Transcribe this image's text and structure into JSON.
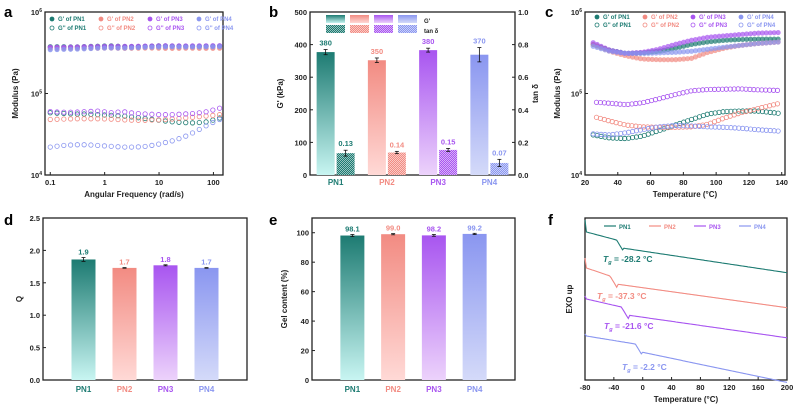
{
  "colors": {
    "PN1": "#1d7b72",
    "PN2": "#f28b82",
    "PN3": "#a855f0",
    "PN4": "#8a96f0",
    "PN1_light": "#c8f5f2",
    "PN2_light": "#ffd9d6",
    "PN3_light": "#ecd2fb",
    "PN4_light": "#d4daf9"
  },
  "chart_data": [
    {
      "panel": "a",
      "type": "scatter",
      "title": "",
      "xlabel": "Angular Frequency (rad/s)",
      "ylabel": "Modulus (Pa)",
      "xscale": "log",
      "yscale": "log",
      "xlim": [
        0.08,
        150
      ],
      "ylim": [
        10000,
        1000000
      ],
      "xticks": [
        "0.1",
        "1",
        "10",
        "100"
      ],
      "yticks": [
        "10^4",
        "10^5",
        "10^6"
      ],
      "legend": [
        "G' of PN1",
        "G' of PN2",
        "G' of PN3",
        "G' of PN4",
        "G'' of PN1",
        "G'' of PN2",
        "G'' of PN3",
        "G'' of PN4"
      ],
      "legend_position": "top",
      "series": [
        {
          "name": "G' of PN1",
          "group": "PN1",
          "filled": true,
          "x_range": [
            0.1,
            130
          ],
          "y": [
            375000,
            375000,
            372000,
            378000,
            380000,
            385000,
            378000,
            375000,
            380000,
            385000,
            382000,
            380000,
            378000,
            380000,
            382000
          ]
        },
        {
          "name": "G' of PN2",
          "group": "PN2",
          "filled": true,
          "x_range": [
            0.1,
            130
          ],
          "y": [
            360000,
            358000,
            360000,
            362000,
            360000,
            362000,
            358000,
            360000,
            362000,
            360000,
            358000,
            360000,
            360000,
            358000,
            360000
          ]
        },
        {
          "name": "G' of PN3",
          "group": "PN3",
          "filled": true,
          "x_range": [
            0.1,
            130
          ],
          "y": [
            370000,
            370000,
            372000,
            375000,
            378000,
            380000,
            378000,
            380000,
            382000,
            385000,
            385000,
            383000,
            384000,
            385000,
            386000
          ]
        },
        {
          "name": "G' of PN4",
          "group": "PN4",
          "filled": true,
          "x_range": [
            0.1,
            130
          ],
          "y": [
            345000,
            348000,
            350000,
            355000,
            360000,
            362000,
            360000,
            365000,
            370000,
            372000,
            374000,
            372000,
            373000,
            374000,
            376000
          ]
        },
        {
          "name": "G'' of PN1",
          "group": "PN1",
          "filled": false,
          "x_range": [
            0.1,
            130
          ],
          "y": [
            58000,
            57000,
            56000,
            56000,
            55000,
            54000,
            53000,
            51000,
            49000,
            47000,
            45000,
            44000,
            43500,
            45000,
            50000
          ]
        },
        {
          "name": "G'' of PN2",
          "group": "PN2",
          "filled": false,
          "x_range": [
            0.1,
            130
          ],
          "y": [
            48000,
            48500,
            49000,
            49000,
            49000,
            48500,
            47500,
            47000,
            47000,
            47500,
            48500,
            50000,
            51500,
            53000,
            55000
          ]
        },
        {
          "name": "G'' of PN3",
          "group": "PN3",
          "filled": false,
          "x_range": [
            0.1,
            130
          ],
          "y": [
            60000,
            59000,
            59000,
            60000,
            61000,
            58000,
            60000,
            57000,
            56000,
            55000,
            55000,
            56000,
            57000,
            60000,
            66000
          ]
        },
        {
          "name": "G'' of PN4",
          "group": "PN4",
          "filled": false,
          "x_range": [
            0.1,
            130
          ],
          "y": [
            22000,
            23000,
            23500,
            23500,
            23000,
            22500,
            22000,
            22000,
            22500,
            24000,
            26000,
            29000,
            34000,
            41000,
            48000
          ]
        }
      ]
    },
    {
      "panel": "b",
      "type": "bar",
      "title": "",
      "categories": [
        "PN1",
        "PN2",
        "PN3",
        "PN4"
      ],
      "xlabel": "",
      "ylabel": "G' (kPa)",
      "ylabel_right": "tan δ",
      "ylim": [
        0,
        500
      ],
      "ylim_right": [
        0,
        1.0
      ],
      "yticks": [
        "0",
        "100",
        "200",
        "300",
        "400",
        "500"
      ],
      "yticks_right": [
        "0.0",
        "0.2",
        "0.4",
        "0.6",
        "0.8",
        "1.0"
      ],
      "legend": [
        "G'",
        "tan δ"
      ],
      "legend_position": "top",
      "series": [
        {
          "name": "G'",
          "axis": "left",
          "values": [
            377,
            352,
            383,
            369
          ],
          "errors": [
            8,
            7,
            6,
            22
          ],
          "labels": [
            "380",
            "350",
            "380",
            "370"
          ]
        },
        {
          "name": "tan δ",
          "axis": "right",
          "values": [
            0.134,
            0.138,
            0.154,
            0.074
          ],
          "errors": [
            0.018,
            0.007,
            0.009,
            0.022
          ],
          "labels": [
            "0.13",
            "0.14",
            "0.15",
            "0.07"
          ]
        }
      ]
    },
    {
      "panel": "c",
      "type": "scatter",
      "title": "",
      "xlabel": "Temperature (°C)",
      "ylabel": "Modulus (Pa)",
      "yscale": "log",
      "xlim": [
        20,
        142
      ],
      "ylim": [
        10000,
        1000000
      ],
      "xticks": [
        "20",
        "40",
        "60",
        "80",
        "100",
        "120",
        "140"
      ],
      "yticks": [
        "10^4",
        "10^5",
        "10^6"
      ],
      "legend": [
        "G' of PN1",
        "G' of PN2",
        "G' of PN3",
        "G' of PN4",
        "G'' of PN1",
        "G'' of PN2",
        "G'' of PN3",
        "G'' of PN4"
      ],
      "legend_position": "top",
      "series": [
        {
          "name": "G' of PN1",
          "group": "PN1",
          "filled": true,
          "x": [
            25,
            35,
            45,
            55,
            65,
            75,
            85,
            95,
            105,
            115,
            125,
            139
          ],
          "y": [
            400000,
            340000,
            310000,
            315000,
            330000,
            360000,
            400000,
            430000,
            450000,
            460000,
            465000,
            465000
          ]
        },
        {
          "name": "G' of PN2",
          "group": "PN2",
          "filled": true,
          "x": [
            25,
            35,
            45,
            55,
            65,
            75,
            85,
            95,
            105,
            115,
            125,
            139
          ],
          "y": [
            400000,
            330000,
            290000,
            265000,
            260000,
            260000,
            270000,
            320000,
            360000,
            390000,
            410000,
            430000
          ]
        },
        {
          "name": "G' of PN3",
          "group": "PN3",
          "filled": true,
          "x": [
            25,
            35,
            45,
            55,
            65,
            75,
            85,
            95,
            105,
            115,
            125,
            139
          ],
          "y": [
            420000,
            340000,
            310000,
            320000,
            350000,
            400000,
            450000,
            490000,
            510000,
            530000,
            550000,
            560000
          ]
        },
        {
          "name": "G' of PN4",
          "group": "PN4",
          "filled": true,
          "x": [
            25,
            35,
            45,
            55,
            65,
            75,
            85,
            95,
            105,
            115,
            125,
            139
          ],
          "y": [
            380000,
            330000,
            310000,
            310000,
            315000,
            320000,
            330000,
            350000,
            370000,
            390000,
            410000,
            430000
          ]
        },
        {
          "name": "G'' of PN1",
          "group": "PN1",
          "filled": false,
          "x": [
            25,
            35,
            45,
            55,
            65,
            75,
            85,
            95,
            105,
            115,
            125,
            139
          ],
          "y": [
            31000,
            28500,
            28000,
            30000,
            35000,
            41000,
            48000,
            56000,
            60000,
            61000,
            61000,
            57000
          ]
        },
        {
          "name": "G'' of PN2",
          "group": "PN2",
          "filled": false,
          "x": [
            27,
            35,
            45,
            55,
            65,
            75,
            85,
            95,
            105,
            115,
            125,
            139
          ],
          "y": [
            51000,
            46000,
            41000,
            39000,
            38500,
            38500,
            39000,
            42000,
            50000,
            58000,
            65000,
            76000
          ]
        },
        {
          "name": "G'' of PN3",
          "group": "PN3",
          "filled": false,
          "x": [
            27,
            35,
            45,
            55,
            65,
            75,
            85,
            95,
            105,
            115,
            125,
            139
          ],
          "y": [
            78000,
            76000,
            73000,
            77000,
            86000,
            97000,
            108000,
            112000,
            113000,
            114000,
            111000,
            109000
          ]
        },
        {
          "name": "G'' of PN4",
          "group": "PN4",
          "filled": false,
          "x": [
            25,
            35,
            45,
            55,
            65,
            75,
            85,
            95,
            105,
            115,
            125,
            139
          ],
          "y": [
            32000,
            31000,
            33000,
            36000,
            39000,
            40500,
            40000,
            39000,
            38500,
            37500,
            36000,
            34500
          ]
        }
      ]
    },
    {
      "panel": "d",
      "type": "bar",
      "title": "",
      "categories": [
        "PN1",
        "PN2",
        "PN3",
        "PN4"
      ],
      "xlabel": "",
      "ylabel": "Q",
      "ylim": [
        0,
        2.5
      ],
      "yticks": [
        "0.0",
        "0.5",
        "1.0",
        "1.5",
        "2.0",
        "2.5"
      ],
      "values": [
        1.86,
        1.73,
        1.77,
        1.73
      ],
      "errors": [
        0.03,
        0.005,
        0.008,
        0.005
      ],
      "labels": [
        "1.9",
        "1.7",
        "1.8",
        "1.7"
      ]
    },
    {
      "panel": "e",
      "type": "bar",
      "title": "",
      "categories": [
        "PN1",
        "PN2",
        "PN3",
        "PN4"
      ],
      "xlabel": "",
      "ylabel": "Gel content (%)",
      "ylim": [
        0,
        110
      ],
      "yticks": [
        "0",
        "20",
        "40",
        "60",
        "80",
        "100"
      ],
      "values": [
        98.1,
        99.0,
        98.2,
        99.2
      ],
      "errors": [
        0.7,
        0.4,
        0.6,
        0.4
      ],
      "labels": [
        "98.1",
        "99.0",
        "98.2",
        "99.2"
      ]
    },
    {
      "panel": "f",
      "type": "line",
      "title": "",
      "xlabel": "Temperature (°C)",
      "ylabel": "EXO up",
      "xlim": [
        -80,
        200
      ],
      "xticks": [
        "-80",
        "-40",
        "0",
        "40",
        "80",
        "120",
        "160",
        "200"
      ],
      "legend": [
        "PN1",
        "PN2",
        "PN3",
        "PN4"
      ],
      "legend_position": "top",
      "annotations": [
        {
          "series": "PN1",
          "text": "= -28.2 °C",
          "tg": -28.2
        },
        {
          "series": "PN2",
          "text": "= -37.3 °C",
          "tg": -37.3
        },
        {
          "series": "PN3",
          "text": "= -21.6 °C",
          "tg": -21.6
        },
        {
          "series": "PN4",
          "text": "= -2.2 °C",
          "tg": -2.2
        }
      ],
      "series": [
        {
          "name": "PN1",
          "tg": -28.2,
          "offset": 0.0
        },
        {
          "name": "PN2",
          "tg": -37.3,
          "offset": 1.0
        },
        {
          "name": "PN3",
          "tg": -21.6,
          "offset": 2.0
        },
        {
          "name": "PN4",
          "tg": -2.2,
          "offset": 3.0
        }
      ]
    }
  ],
  "panels": {
    "a": "a",
    "b": "b",
    "c": "c",
    "d": "d",
    "e": "e",
    "f": "f"
  },
  "tg_symbol": "T",
  "tg_sub": "g"
}
